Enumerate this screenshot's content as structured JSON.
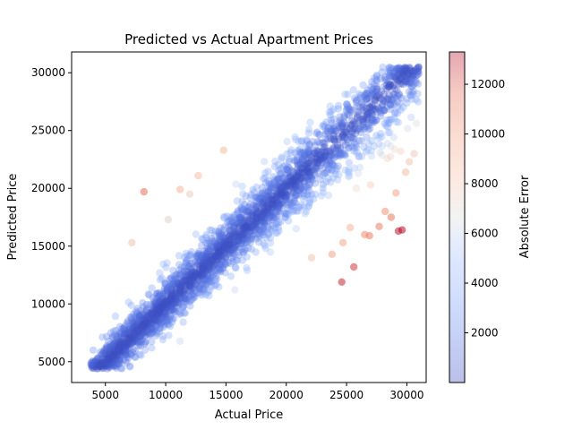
{
  "chart_data": {
    "type": "scatter",
    "title": "Predicted vs Actual Apartment Prices",
    "xlabel": "Actual Price",
    "ylabel": "Predicted Price",
    "xlim": [
      2200,
      31600
    ],
    "ylim": [
      3200,
      31800
    ],
    "xticks": [
      5000,
      10000,
      15000,
      20000,
      25000,
      30000
    ],
    "yticks": [
      5000,
      10000,
      15000,
      20000,
      25000,
      30000
    ],
    "grid": false,
    "colorbar": {
      "label": "Absolute Error",
      "colormap": "coolwarm",
      "range": [
        0,
        13300
      ],
      "ticks": [
        2000,
        4000,
        6000,
        8000,
        10000,
        12000
      ]
    },
    "series": [
      {
        "marker_alpha": 0.35,
        "density": {
          "x_range": [
            3800,
            31000
          ],
          "dominant_relation": "predicted ≈ actual",
          "approx_count": 2500
        },
        "highlighted_points": [
          {
            "x": 8200,
            "y": 19700,
            "error": 11500
          },
          {
            "x": 24600,
            "y": 11900,
            "error": 12700
          },
          {
            "x": 29300,
            "y": 16300,
            "error": 13000
          },
          {
            "x": 29600,
            "y": 16400,
            "error": 13200
          },
          {
            "x": 27700,
            "y": 16700,
            "error": 11000
          },
          {
            "x": 26500,
            "y": 16000,
            "error": 10500
          },
          {
            "x": 26900,
            "y": 15900,
            "error": 11000
          },
          {
            "x": 23800,
            "y": 14300,
            "error": 9500
          },
          {
            "x": 24700,
            "y": 15300,
            "error": 9400
          },
          {
            "x": 22100,
            "y": 14000,
            "error": 8100
          },
          {
            "x": 25300,
            "y": 16600,
            "error": 8700
          },
          {
            "x": 28200,
            "y": 18000,
            "error": 10200
          },
          {
            "x": 28700,
            "y": 17500,
            "error": 11200
          },
          {
            "x": 29100,
            "y": 19600,
            "error": 9500
          },
          {
            "x": 29900,
            "y": 21400,
            "error": 8500
          },
          {
            "x": 30200,
            "y": 22300,
            "error": 7900
          },
          {
            "x": 30600,
            "y": 23000,
            "error": 7600
          },
          {
            "x": 10200,
            "y": 17300,
            "error": 7100
          },
          {
            "x": 11200,
            "y": 19900,
            "error": 8700
          },
          {
            "x": 12000,
            "y": 19500,
            "error": 7500
          },
          {
            "x": 12700,
            "y": 21100,
            "error": 8400
          },
          {
            "x": 7200,
            "y": 15300,
            "error": 8100
          },
          {
            "x": 14800,
            "y": 23300,
            "error": 8500
          },
          {
            "x": 25600,
            "y": 13200,
            "error": 12400
          }
        ]
      }
    ]
  }
}
